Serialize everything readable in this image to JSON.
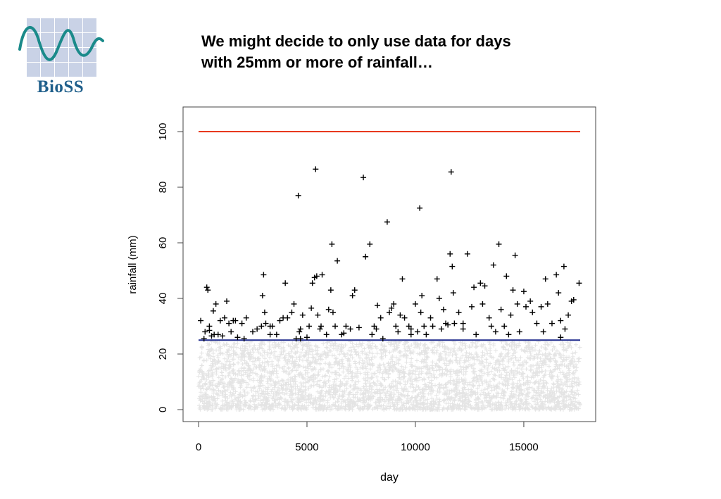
{
  "slide": {
    "title_lines": [
      "We might decide to only use data for days",
      "with 25mm or more of rainfall…"
    ]
  },
  "logo": {
    "text": "BioSS",
    "text_color": "#1f5f8b",
    "wave_color": "#1a8a8a",
    "tile_color": "#c9d2e6"
  },
  "chart_data": {
    "type": "scatter",
    "title": "",
    "xlabel": "day",
    "ylabel": "rainfall (mm)",
    "xlim": [
      0,
      17600
    ],
    "ylim": [
      0,
      100
    ],
    "xticks": [
      0,
      5000,
      10000,
      15000
    ],
    "yticks": [
      0,
      20,
      40,
      60,
      80,
      100
    ],
    "grid": false,
    "marker": "+",
    "reference_lines": [
      {
        "y": 100,
        "color": "#e8391d"
      },
      {
        "y": 25,
        "color": "#1e2a8c"
      }
    ],
    "series": [
      {
        "color": "#000000",
        "points": [
          [
            100,
            32
          ],
          [
            250,
            25.5
          ],
          [
            300,
            28
          ],
          [
            380,
            44
          ],
          [
            430,
            43
          ],
          [
            500,
            30
          ],
          [
            600,
            26.5
          ],
          [
            680,
            35.5
          ],
          [
            720,
            27
          ],
          [
            800,
            38
          ],
          [
            900,
            27
          ],
          [
            1000,
            32
          ],
          [
            1100,
            26.5
          ],
          [
            1200,
            33
          ],
          [
            1300,
            39
          ],
          [
            1400,
            31
          ],
          [
            1500,
            28
          ],
          [
            1700,
            32
          ],
          [
            1800,
            26
          ],
          [
            2000,
            31
          ],
          [
            2100,
            25.5
          ],
          [
            2200,
            33
          ],
          [
            2500,
            28
          ],
          [
            2700,
            29
          ],
          [
            2900,
            30
          ],
          [
            2950,
            41
          ],
          [
            3000,
            48.5
          ],
          [
            3050,
            35
          ],
          [
            3100,
            31
          ],
          [
            3300,
            27
          ],
          [
            3400,
            30
          ],
          [
            3600,
            27
          ],
          [
            3750,
            32
          ],
          [
            3900,
            33
          ],
          [
            4000,
            45.5
          ],
          [
            4100,
            33
          ],
          [
            4300,
            35
          ],
          [
            4400,
            38
          ],
          [
            4500,
            25.5
          ],
          [
            4600,
            77
          ],
          [
            4650,
            28
          ],
          [
            4700,
            29
          ],
          [
            4800,
            34
          ],
          [
            5000,
            26
          ],
          [
            5100,
            30
          ],
          [
            5200,
            36.5
          ],
          [
            5250,
            45.5
          ],
          [
            5350,
            47.5
          ],
          [
            5400,
            86.5
          ],
          [
            5450,
            48
          ],
          [
            5500,
            34
          ],
          [
            5600,
            29
          ],
          [
            5650,
            30
          ],
          [
            5700,
            48.5
          ],
          [
            5900,
            27
          ],
          [
            6000,
            36
          ],
          [
            6100,
            43
          ],
          [
            6150,
            59.5
          ],
          [
            6200,
            35
          ],
          [
            6300,
            30
          ],
          [
            6400,
            53.5
          ],
          [
            6600,
            27
          ],
          [
            6800,
            30
          ],
          [
            7000,
            29
          ],
          [
            7100,
            41
          ],
          [
            7200,
            43
          ],
          [
            7400,
            29.5
          ],
          [
            7600,
            83.5
          ],
          [
            7700,
            55
          ],
          [
            7900,
            59.5
          ],
          [
            8000,
            27
          ],
          [
            8100,
            30
          ],
          [
            8200,
            29
          ],
          [
            8250,
            37.5
          ],
          [
            8400,
            33
          ],
          [
            8500,
            25.5
          ],
          [
            8700,
            67.5
          ],
          [
            8800,
            35
          ],
          [
            8900,
            36.5
          ],
          [
            9000,
            38
          ],
          [
            9100,
            30
          ],
          [
            9200,
            28
          ],
          [
            9300,
            34
          ],
          [
            9400,
            47
          ],
          [
            9500,
            33
          ],
          [
            9700,
            30
          ],
          [
            9800,
            29
          ],
          [
            10000,
            38
          ],
          [
            10100,
            28
          ],
          [
            10200,
            72.5
          ],
          [
            10250,
            35
          ],
          [
            10300,
            41
          ],
          [
            10400,
            30
          ],
          [
            10500,
            27
          ],
          [
            10700,
            33
          ],
          [
            10800,
            30
          ],
          [
            11000,
            47
          ],
          [
            11100,
            40
          ],
          [
            11200,
            29
          ],
          [
            11300,
            36
          ],
          [
            11400,
            31
          ],
          [
            11500,
            30.5
          ],
          [
            11600,
            56
          ],
          [
            11650,
            85.5
          ],
          [
            11700,
            51.5
          ],
          [
            11750,
            42
          ],
          [
            11800,
            31
          ],
          [
            12000,
            35
          ],
          [
            12200,
            29
          ],
          [
            12400,
            56
          ],
          [
            12600,
            37
          ],
          [
            12700,
            44
          ],
          [
            12800,
            27
          ],
          [
            13000,
            45.5
          ],
          [
            13100,
            38
          ],
          [
            13200,
            44.5
          ],
          [
            13400,
            33
          ],
          [
            13500,
            30
          ],
          [
            13600,
            52
          ],
          [
            13700,
            28
          ],
          [
            13850,
            59.5
          ],
          [
            13950,
            36
          ],
          [
            14100,
            30
          ],
          [
            14200,
            48
          ],
          [
            14400,
            34
          ],
          [
            14500,
            43
          ],
          [
            14600,
            55.5
          ],
          [
            14700,
            38
          ],
          [
            14800,
            28
          ],
          [
            15000,
            42.5
          ],
          [
            15100,
            37
          ],
          [
            15300,
            39
          ],
          [
            15400,
            35
          ],
          [
            15600,
            31
          ],
          [
            15800,
            37
          ],
          [
            15900,
            28
          ],
          [
            16000,
            47
          ],
          [
            16100,
            38
          ],
          [
            16300,
            31
          ],
          [
            16500,
            48.5
          ],
          [
            16600,
            42
          ],
          [
            16700,
            32
          ],
          [
            16850,
            51.5
          ],
          [
            16900,
            29
          ],
          [
            17050,
            34
          ],
          [
            17200,
            39
          ],
          [
            17300,
            39.5
          ],
          [
            17550,
            45.5
          ],
          [
            500,
            28.5
          ],
          [
            1600,
            32
          ],
          [
            3300,
            30
          ],
          [
            4700,
            25.5
          ],
          [
            6700,
            27.5
          ],
          [
            9800,
            27
          ],
          [
            12200,
            31
          ],
          [
            14300,
            27
          ],
          [
            16700,
            26
          ]
        ]
      }
    ]
  }
}
